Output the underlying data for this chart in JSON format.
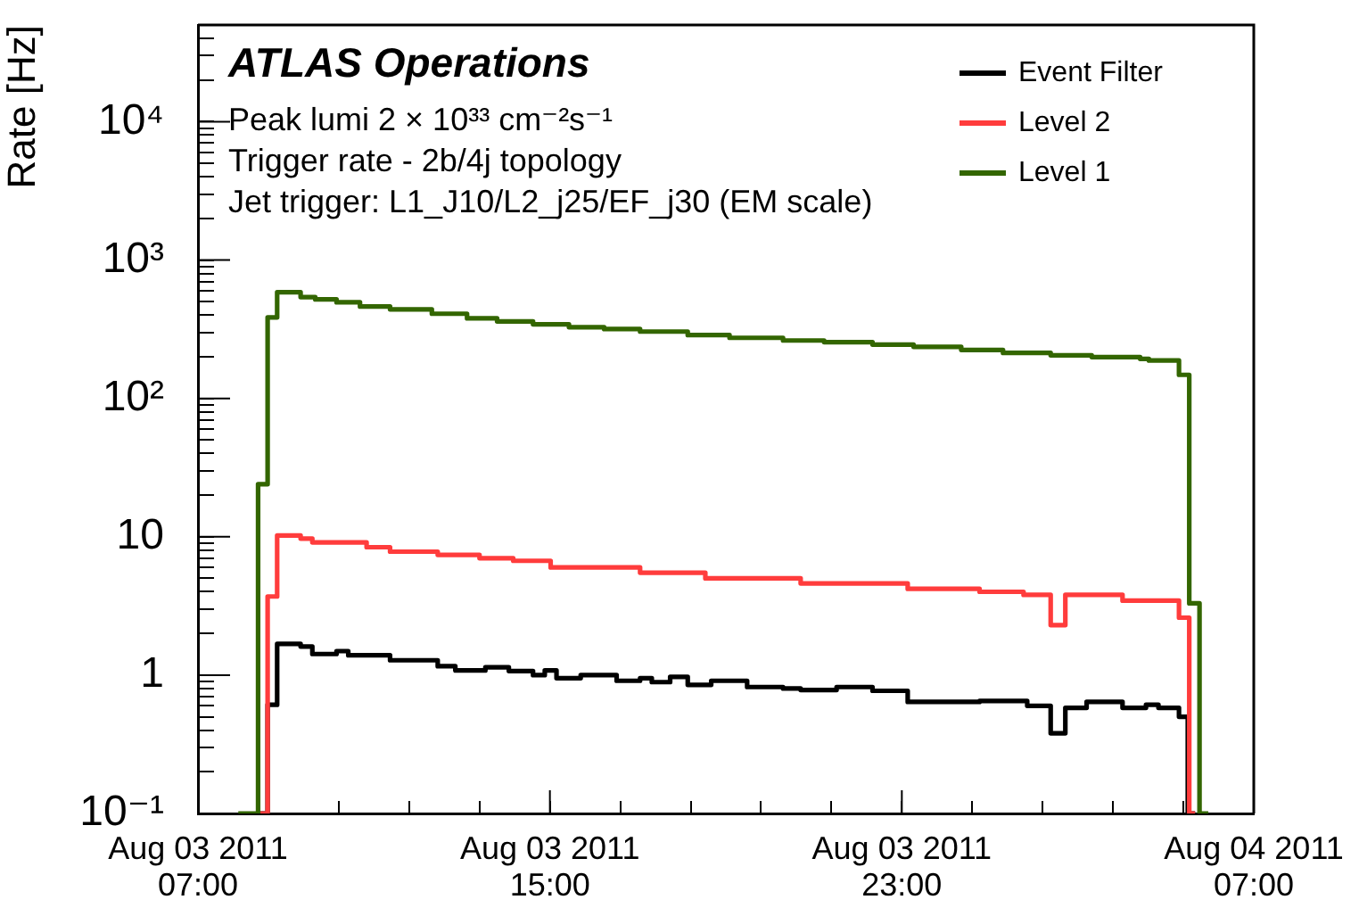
{
  "chart_data": {
    "type": "step",
    "title": "ATLAS Operations",
    "annotations": [
      "Peak lumi 2 × 10³³ cm⁻²s⁻¹",
      "Trigger rate - 2b/4j topology",
      "Jet trigger: L1_J10/L2_j25/EF_j30 (EM scale)"
    ],
    "ylabel": "Rate [Hz]",
    "log": true,
    "grid": false,
    "legend": "top right",
    "xlim": [
      "2011-08-03T07:00",
      "2011-08-04T07:00"
    ],
    "xticks": [
      {
        "value": "2011-08-03T07:00",
        "label": "Aug 03 2011\n07:00"
      },
      {
        "value": "2011-08-03T08:36",
        "label": null
      },
      {
        "value": "2011-08-03T10:12",
        "label": null
      },
      {
        "value": "2011-08-03T11:48",
        "label": null
      },
      {
        "value": "2011-08-03T13:24",
        "label": null
      },
      {
        "value": "2011-08-03T15:00",
        "label": "Aug 03 2011\n15:00"
      },
      {
        "value": "2011-08-03T16:36",
        "label": null
      },
      {
        "value": "2011-08-03T18:12",
        "label": null
      },
      {
        "value": "2011-08-03T19:48",
        "label": null
      },
      {
        "value": "2011-08-03T21:24",
        "label": null
      },
      {
        "value": "2011-08-03T23:00",
        "label": "Aug 03 2011\n23:00"
      },
      {
        "value": "2011-08-04T00:36",
        "label": null
      },
      {
        "value": "2011-08-04T02:12",
        "label": null
      },
      {
        "value": "2011-08-04T03:48",
        "label": null
      },
      {
        "value": "2011-08-04T05:24",
        "label": null
      },
      {
        "value": "2011-08-04T07:00",
        "label": "Aug 04 2011\n07:00"
      }
    ],
    "ylim": [
      0.1,
      50000
    ],
    "yticks": [
      {
        "value": 0.1,
        "label": "10⁻¹"
      },
      {
        "value": 0.2,
        "label": null
      },
      {
        "value": 0.3,
        "label": null
      },
      {
        "value": 0.4,
        "label": null
      },
      {
        "value": 0.5,
        "label": null
      },
      {
        "value": 0.6,
        "label": null
      },
      {
        "value": 0.7,
        "label": null
      },
      {
        "value": 0.8,
        "label": null
      },
      {
        "value": 0.9,
        "label": null
      },
      1,
      {
        "value": 2,
        "label": null
      },
      {
        "value": 3,
        "label": null
      },
      {
        "value": 4,
        "label": null
      },
      {
        "value": 5,
        "label": null
      },
      {
        "value": 6,
        "label": null
      },
      {
        "value": 7,
        "label": null
      },
      {
        "value": 8,
        "label": null
      },
      {
        "value": 9,
        "label": null
      },
      10,
      {
        "value": 20,
        "label": null
      },
      {
        "value": 30,
        "label": null
      },
      {
        "value": 40,
        "label": null
      },
      {
        "value": 50,
        "label": null
      },
      {
        "value": 60,
        "label": null
      },
      {
        "value": 70,
        "label": null
      },
      {
        "value": 80,
        "label": null
      },
      {
        "value": 90,
        "label": null
      },
      {
        "value": 100,
        "label": "10²"
      },
      {
        "value": 200,
        "label": null
      },
      {
        "value": 300,
        "label": null
      },
      {
        "value": 400,
        "label": null
      },
      {
        "value": 500,
        "label": null
      },
      {
        "value": 600,
        "label": null
      },
      {
        "value": 700,
        "label": null
      },
      {
        "value": 800,
        "label": null
      },
      {
        "value": 900,
        "label": null
      },
      {
        "value": 1000,
        "label": "10³"
      },
      {
        "value": 2000,
        "label": null
      },
      {
        "value": 3000,
        "label": null
      },
      {
        "value": 4000,
        "label": null
      },
      {
        "value": 5000,
        "label": null
      },
      {
        "value": 6000,
        "label": null
      },
      {
        "value": 7000,
        "label": null
      },
      {
        "value": 8000,
        "label": null
      },
      {
        "value": 9000,
        "label": null
      },
      {
        "value": 10000,
        "label": "10⁴"
      },
      {
        "value": 20000,
        "label": null
      },
      {
        "value": 30000,
        "label": null
      },
      {
        "value": 40000,
        "label": null
      }
    ],
    "series": [
      {
        "name": "Event Filter",
        "color": "#000000",
        "x": [
          "2011-08-03T08:22",
          "2011-08-03T08:35",
          "2011-08-03T08:48",
          "2011-08-03T09:20",
          "2011-08-03T09:36",
          "2011-08-03T10:09",
          "2011-08-03T10:25",
          "2011-08-03T11:22",
          "2011-08-03T12:27",
          "2011-08-03T12:51",
          "2011-08-03T13:32",
          "2011-08-03T14:04",
          "2011-08-03T14:37",
          "2011-08-03T14:53",
          "2011-08-03T15:09",
          "2011-08-03T15:42",
          "2011-08-03T16:31",
          "2011-08-03T17:03",
          "2011-08-03T17:19",
          "2011-08-03T17:44",
          "2011-08-03T18:08",
          "2011-08-03T18:40",
          "2011-08-03T19:29",
          "2011-08-03T20:18",
          "2011-08-03T20:42",
          "2011-08-03T21:31",
          "2011-08-03T22:20",
          "2011-08-03T23:08",
          "2011-08-04T00:46",
          "2011-08-04T01:51",
          "2011-08-04T02:23",
          "2011-08-04T02:43",
          "2011-08-04T03:12",
          "2011-08-04T04:01",
          "2011-08-04T04:33",
          "2011-08-04T04:50",
          "2011-08-04T05:18",
          "2011-08-04T05:30",
          "2011-08-04T05:40"
        ],
        "values": [
          0.1,
          0.61,
          1.68,
          1.61,
          1.42,
          1.49,
          1.39,
          1.28,
          1.16,
          1.08,
          1.14,
          1.07,
          1.0,
          1.08,
          0.95,
          1.0,
          0.91,
          0.95,
          0.89,
          0.97,
          0.85,
          0.91,
          0.82,
          0.8,
          0.78,
          0.82,
          0.77,
          0.64,
          0.65,
          0.6,
          0.38,
          0.58,
          0.64,
          0.58,
          0.61,
          0.58,
          0.5,
          0.1,
          0.1
        ]
      },
      {
        "name": "Level 2",
        "color": "#ff3c3c",
        "x": [
          "2011-08-03T08:22",
          "2011-08-03T08:35",
          "2011-08-03T08:48",
          "2011-08-03T09:20",
          "2011-08-03T09:36",
          "2011-08-03T10:50",
          "2011-08-03T11:22",
          "2011-08-03T12:27",
          "2011-08-03T13:24",
          "2011-08-03T14:10",
          "2011-08-03T15:01",
          "2011-08-03T17:03",
          "2011-08-03T18:32",
          "2011-08-03T20:42",
          "2011-08-03T23:08",
          "2011-08-04T00:46",
          "2011-08-04T01:46",
          "2011-08-04T02:23",
          "2011-08-04T02:43",
          "2011-08-04T04:01",
          "2011-08-04T05:18",
          "2011-08-04T05:32",
          "2011-08-04T05:40"
        ],
        "values": [
          0.1,
          3.7,
          10.2,
          9.7,
          9.1,
          8.4,
          7.8,
          7.4,
          7.0,
          6.7,
          6.0,
          5.5,
          5.0,
          4.6,
          4.2,
          4.0,
          3.8,
          2.3,
          3.8,
          3.45,
          2.6,
          0.1,
          0.1
        ]
      },
      {
        "name": "Level 1",
        "color": "#336600",
        "x": [
          "2011-08-03T07:55",
          "2011-08-03T08:22",
          "2011-08-03T08:35",
          "2011-08-03T08:48",
          "2011-08-03T09:20",
          "2011-08-03T09:40",
          "2011-08-03T10:09",
          "2011-08-03T10:41",
          "2011-08-03T11:22",
          "2011-08-03T12:19",
          "2011-08-03T13:07",
          "2011-08-03T13:48",
          "2011-08-03T14:37",
          "2011-08-03T15:26",
          "2011-08-03T16:14",
          "2011-08-03T17:03",
          "2011-08-03T18:08",
          "2011-08-03T19:05",
          "2011-08-03T20:18",
          "2011-08-03T21:14",
          "2011-08-03T22:20",
          "2011-08-03T23:16",
          "2011-08-04T00:21",
          "2011-08-04T01:18",
          "2011-08-04T02:23",
          "2011-08-04T03:19",
          "2011-08-04T04:25",
          "2011-08-04T04:37",
          "2011-08-04T05:18",
          "2011-08-04T05:32",
          "2011-08-04T05:46",
          "2011-08-04T05:58"
        ],
        "values": [
          0.1,
          24,
          385,
          585,
          540,
          519,
          495,
          461,
          440,
          409,
          379,
          360,
          343,
          327,
          317,
          304,
          287,
          274,
          262,
          255,
          245,
          236,
          224,
          213,
          205,
          199,
          193,
          188,
          148,
          3.3,
          0.1,
          0.1
        ]
      }
    ]
  }
}
